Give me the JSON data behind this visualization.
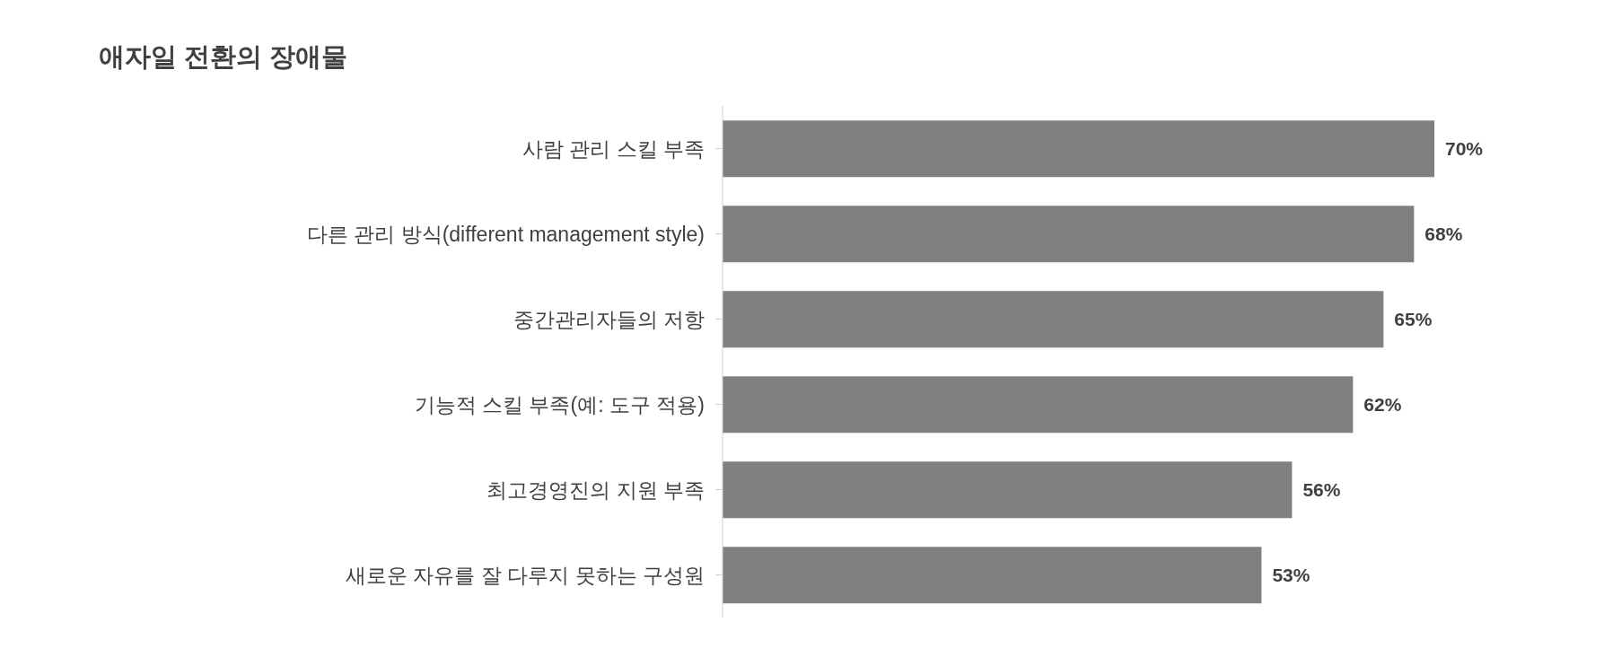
{
  "chart_data": {
    "type": "bar",
    "orientation": "horizontal",
    "title": "애자일 전환의 장애물",
    "categories": [
      "사람 관리 스킬 부족",
      "다른 관리 방식(different management style)",
      "중간관리자들의 저항",
      "기능적 스킬 부족(예: 도구 적용)",
      "최고경영진의 지원 부족",
      "새로운 자유를 잘 다루지 못하는 구성원"
    ],
    "values": [
      70,
      68,
      65,
      62,
      56,
      53
    ],
    "value_labels": [
      "70%",
      "68%",
      "65%",
      "62%",
      "56%",
      "53%"
    ],
    "color": "#808080",
    "grid": false,
    "legend": false
  }
}
